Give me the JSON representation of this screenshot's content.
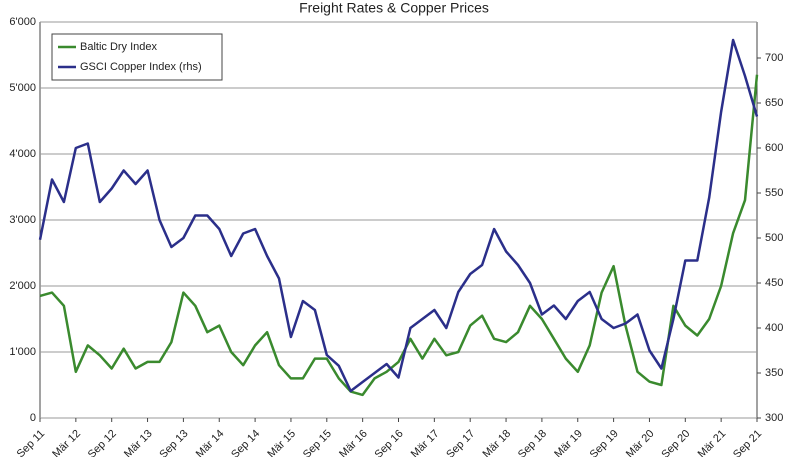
{
  "chart_data": {
    "type": "line",
    "title": "Freight Rates & Copper Prices",
    "categories": [
      "Sep 11",
      null,
      null,
      "Mär 12",
      null,
      null,
      "Sep 12",
      null,
      null,
      "Mär 13",
      null,
      null,
      "Sep 13",
      null,
      null,
      "Mär 14",
      null,
      null,
      "Sep 14",
      null,
      null,
      "Mär 15",
      null,
      null,
      "Sep 15",
      null,
      null,
      "Mär 16",
      null,
      null,
      "Sep 16",
      null,
      null,
      "Mär 17",
      null,
      null,
      "Sep 17",
      null,
      null,
      "Mär 18",
      null,
      null,
      "Sep 18",
      null,
      null,
      "Mär 19",
      null,
      null,
      "Sep 19",
      null,
      null,
      "Mär 20",
      null,
      null,
      "Sep 20",
      null,
      null,
      "Mär 21",
      null,
      null,
      "Sep 21"
    ],
    "series": [
      {
        "name": "Baltic Dry Index",
        "color": "#3a8a2e",
        "values": [
          1850,
          1900,
          1700,
          700,
          1100,
          950,
          750,
          1050,
          750,
          850,
          850,
          1150,
          1900,
          1700,
          1300,
          1400,
          1000,
          800,
          1100,
          1300,
          800,
          600,
          600,
          900,
          900,
          600,
          400,
          350,
          600,
          700,
          850,
          1200,
          900,
          1200,
          950,
          1000,
          1400,
          1550,
          1200,
          1150,
          1300,
          1700,
          1500,
          1200,
          900,
          700,
          1100,
          1900,
          2300,
          1400,
          700,
          550,
          500,
          1700,
          1400,
          1250,
          1500,
          2000,
          2800,
          3300,
          5200
        ]
      },
      {
        "name": "GSCI Copper Index (rhs)",
        "color": "#2b2f8a",
        "axis": "y2",
        "values": [
          498,
          565,
          540,
          600,
          605,
          540,
          555,
          575,
          560,
          575,
          520,
          490,
          500,
          525,
          525,
          510,
          480,
          505,
          510,
          480,
          455,
          390,
          430,
          420,
          370,
          358,
          330,
          340,
          350,
          360,
          345,
          400,
          410,
          420,
          400,
          440,
          460,
          470,
          510,
          485,
          470,
          450,
          415,
          425,
          410,
          430,
          440,
          410,
          400,
          405,
          415,
          375,
          355,
          410,
          475,
          475,
          545,
          640,
          720,
          680,
          635
        ]
      }
    ],
    "ylim": [
      0,
      6000
    ],
    "yticks": [
      0,
      {
        "value": 1000,
        "label": "1'000"
      },
      {
        "value": 2000,
        "label": "2'000"
      },
      {
        "value": 3000,
        "label": "3'000"
      },
      {
        "value": 4000,
        "label": "4'000"
      },
      {
        "value": 5000,
        "label": "5'000"
      },
      {
        "value": 6000,
        "label": "6'000"
      }
    ],
    "y2lim": [
      300,
      740
    ],
    "y2ticks": [
      300,
      350,
      400,
      450,
      500,
      550,
      600,
      650,
      700
    ],
    "grid": true,
    "legend": "upper left"
  }
}
